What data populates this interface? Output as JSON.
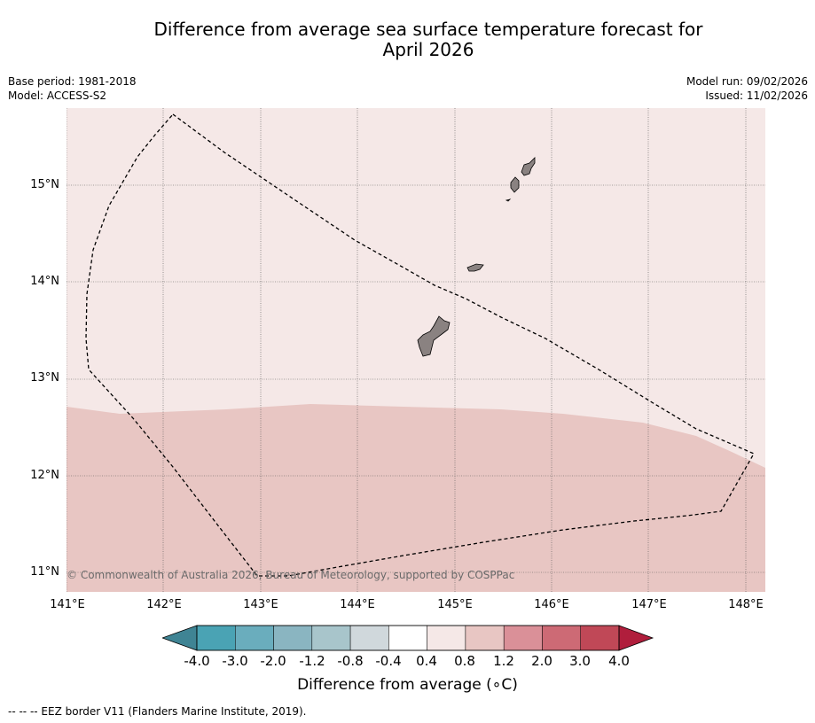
{
  "title_line1": "Difference from average sea surface temperature forecast for",
  "title_line2": "April 2026",
  "meta_left": {
    "base_period": "Base period: 1981-2018",
    "model": "Model: ACCESS-S2"
  },
  "meta_right": {
    "model_run": "Model run: 09/02/2026",
    "issued": "Issued: 11/02/2026"
  },
  "latitude_labels": [
    "15°N",
    "14°N",
    "13°N",
    "12°N",
    "11°N"
  ],
  "longitude_labels": [
    "141°E",
    "142°E",
    "143°E",
    "144°E",
    "145°E",
    "146°E",
    "147°E",
    "148°E"
  ],
  "copyright": "© Commonwealth of Australia 2026, Bureau of Meteorology, supported by COSPPac",
  "colorbar": {
    "ticks": [
      "-4.0",
      "-3.0",
      "-2.0",
      "-1.2",
      "-0.8",
      "-0.4",
      "0.4",
      "0.8",
      "1.2",
      "2.0",
      "3.0",
      "4.0"
    ],
    "colors": [
      "#3f8494",
      "#4aa3b4",
      "#6aadbd",
      "#8ab5c1",
      "#a8c5cb",
      "#d0d8dc",
      "#ffffff",
      "#f5e8e7",
      "#e8c6c3",
      "#da9098",
      "#cd6a75",
      "#c04857",
      "#b01e3c"
    ],
    "label": "Difference from average ($^\\circ$C)",
    "label_display": "Difference from average (∘C)"
  },
  "legend": "--  --  -- EEZ border V11 (Flanders Marine Institute, 2019).",
  "anomaly_colors": {
    "band_0_4_to_0_8": "#f5e8e7",
    "band_0_8_to_1_2": "#e8c6c3"
  }
}
